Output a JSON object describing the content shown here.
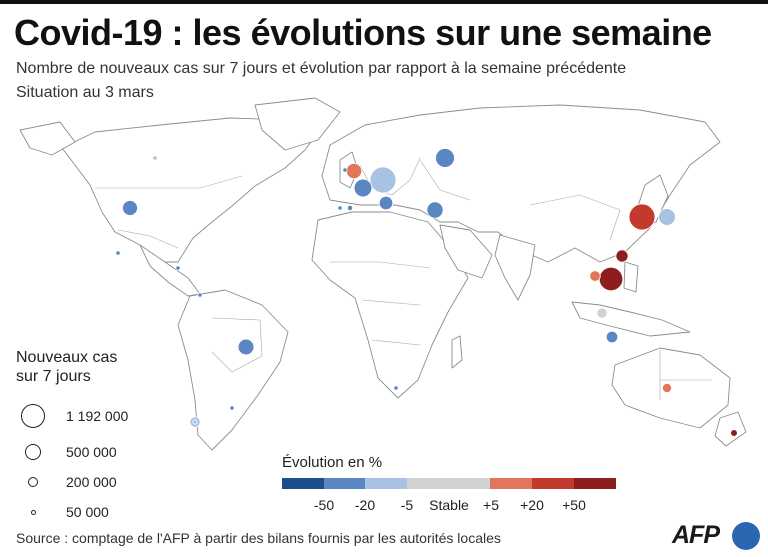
{
  "header": {
    "title": "Covid-19 : les évolutions sur une semaine",
    "subtitle": "Nombre de nouveaux cas sur 7 jours et évolution par rapport à la semaine précédente",
    "date": "Situation au 3 mars"
  },
  "size_legend": {
    "title_line1": "Nouveaux cas",
    "title_line2": "sur 7 jours",
    "items": [
      {
        "label": "1 192 000",
        "value": 1192000
      },
      {
        "label": "500 000",
        "value": 500000
      },
      {
        "label": "200 000",
        "value": 200000
      },
      {
        "label": "50 000",
        "value": 50000
      }
    ]
  },
  "evolution_legend": {
    "title": "Évolution en %",
    "colors": [
      "#1f4e8c",
      "#5a86c1",
      "#a7c2e2",
      "#d2d2d2",
      "#d2d2d2",
      "#e0765a",
      "#c13a2d",
      "#8e1e1e"
    ],
    "ticks": [
      "-50",
      "-20",
      "-5",
      "Stable",
      "+5",
      "+20",
      "+50"
    ]
  },
  "colors": {
    "strong_decrease": "#1f4e8c",
    "decrease": "#5a86c1",
    "slight_decrease": "#a7c2e2",
    "stable": "#d2d2d2",
    "slight_increase": "#e0765a",
    "increase": "#c13a2d",
    "strong_increase": "#8e1e1e"
  },
  "bubbles": [
    {
      "name": "usa",
      "cases": 400000,
      "color": "#5a86c1"
    },
    {
      "name": "canada-west",
      "cases": 5000,
      "color": "#a7c2e2"
    },
    {
      "name": "mexico",
      "cases": 15000,
      "color": "#5a86c1"
    },
    {
      "name": "caribbean",
      "cases": 6000,
      "color": "#5a86c1"
    },
    {
      "name": "colombia",
      "cases": 5000,
      "color": "#5a86c1"
    },
    {
      "name": "brazil",
      "cases": 440000,
      "color": "#5a86c1"
    },
    {
      "name": "chile",
      "cases": 20000,
      "color": "#a7c2e2"
    },
    {
      "name": "argentina",
      "cases": 180000,
      "color": "#a7c2e2"
    },
    {
      "name": "uruguay",
      "cases": 8000,
      "color": "#5a86c1"
    },
    {
      "name": "south-africa",
      "cases": 10000,
      "color": "#5a86c1"
    },
    {
      "name": "united-kingdom",
      "cases": 420000,
      "color": "#e0765a"
    },
    {
      "name": "ireland",
      "cases": 15000,
      "color": "#5a86c1"
    },
    {
      "name": "france",
      "cases": 560000,
      "color": "#5a86c1"
    },
    {
      "name": "germany",
      "cases": 1192000,
      "color": "#a7c2e2"
    },
    {
      "name": "spain",
      "cases": 50000,
      "color": "#5a86c1"
    },
    {
      "name": "portugal",
      "cases": 30000,
      "color": "#5a86c1"
    },
    {
      "name": "italy",
      "cases": 330000,
      "color": "#5a86c1"
    },
    {
      "name": "russia",
      "cases": 640000,
      "color": "#5a86c1"
    },
    {
      "name": "turkey",
      "cases": 460000,
      "color": "#5a86c1"
    },
    {
      "name": "japan",
      "cases": 1192000,
      "color": "#c13a2d"
    },
    {
      "name": "south-korea",
      "cases": 500000,
      "color": "#a7c2e2"
    },
    {
      "name": "vietnam",
      "cases": 990000,
      "color": "#8e1e1e"
    },
    {
      "name": "hong-kong",
      "cases": 260000,
      "color": "#8e1e1e"
    },
    {
      "name": "thailand",
      "cases": 200000,
      "color": "#e0765a"
    },
    {
      "name": "malaysia",
      "cases": 180000,
      "color": "#d2d2d2"
    },
    {
      "name": "indonesia",
      "cases": 240000,
      "color": "#5a86c1"
    },
    {
      "name": "australia",
      "cases": 150000,
      "color": "#e0765a"
    },
    {
      "name": "new-zealand",
      "cases": 80000,
      "color": "#8e1e1e"
    }
  ]
}
